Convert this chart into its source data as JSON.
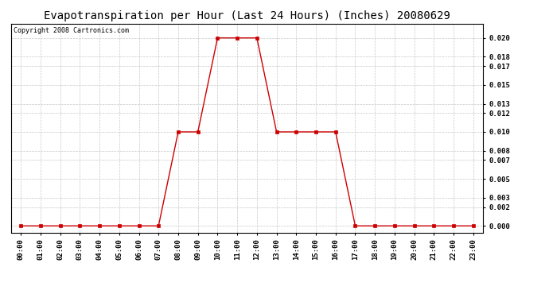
{
  "title": "Evapotranspiration per Hour (Last 24 Hours) (Inches) 20080629",
  "copyright_text": "Copyright 2008 Cartronics.com",
  "hours": [
    0,
    1,
    2,
    3,
    4,
    5,
    6,
    7,
    8,
    9,
    10,
    11,
    12,
    13,
    14,
    15,
    16,
    17,
    18,
    19,
    20,
    21,
    22,
    23
  ],
  "values": [
    0.0,
    0.0,
    0.0,
    0.0,
    0.0,
    0.0,
    0.0,
    0.0,
    0.01,
    0.01,
    0.02,
    0.02,
    0.02,
    0.01,
    0.01,
    0.01,
    0.01,
    0.0,
    0.0,
    0.0,
    0.0,
    0.0,
    0.0,
    0.0
  ],
  "line_color": "#cc0000",
  "marker": "s",
  "marker_size": 2.5,
  "bg_color": "#ffffff",
  "grid_color": "#c8c8c8",
  "yticks": [
    0.0,
    0.002,
    0.003,
    0.005,
    0.007,
    0.008,
    0.01,
    0.012,
    0.013,
    0.015,
    0.017,
    0.018,
    0.02
  ],
  "ylim": [
    -0.0007,
    0.0215
  ],
  "xlim": [
    -0.5,
    23.5
  ],
  "title_fontsize": 10,
  "tick_fontsize": 6.5,
  "copyright_fontsize": 6
}
